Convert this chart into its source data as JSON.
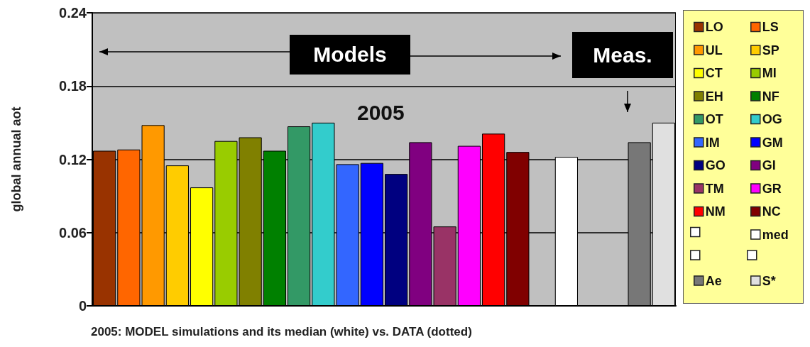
{
  "chart_data": {
    "type": "bar",
    "xlabel": "2005: MODEL simulations and its median (white) vs. DATA (dotted)",
    "ylabel": "global annual aot",
    "annotations": [
      "Models",
      "Meas.",
      "2005"
    ],
    "categories": [
      null,
      null,
      null,
      null,
      null,
      null,
      null,
      null,
      null,
      null,
      null,
      null,
      null,
      null,
      null,
      null,
      null,
      null,
      null,
      null,
      null,
      null,
      null,
      null
    ],
    "series": [
      {
        "name": "LO",
        "color": "#993300",
        "values": [
          0.127,
          null,
          null,
          null,
          null,
          null,
          null,
          null,
          null,
          null,
          null,
          null,
          null,
          null,
          null,
          null,
          null,
          null,
          null,
          null,
          null,
          null,
          null,
          null
        ]
      },
      {
        "name": "LS",
        "color": "#ff6600",
        "values": [
          null,
          0.128,
          null,
          null,
          null,
          null,
          null,
          null,
          null,
          null,
          null,
          null,
          null,
          null,
          null,
          null,
          null,
          null,
          null,
          null,
          null,
          null,
          null,
          null
        ]
      },
      {
        "name": "UL",
        "color": "#ff9900",
        "values": [
          null,
          null,
          0.148,
          null,
          null,
          null,
          null,
          null,
          null,
          null,
          null,
          null,
          null,
          null,
          null,
          null,
          null,
          null,
          null,
          null,
          null,
          null,
          null,
          null
        ]
      },
      {
        "name": "SP",
        "color": "#ffcc00",
        "values": [
          null,
          null,
          null,
          0.115,
          null,
          null,
          null,
          null,
          null,
          null,
          null,
          null,
          null,
          null,
          null,
          null,
          null,
          null,
          null,
          null,
          null,
          null,
          null,
          null
        ]
      },
      {
        "name": "CT",
        "color": "#ffff00",
        "values": [
          null,
          null,
          null,
          null,
          0.097,
          null,
          null,
          null,
          null,
          null,
          null,
          null,
          null,
          null,
          null,
          null,
          null,
          null,
          null,
          null,
          null,
          null,
          null,
          null
        ]
      },
      {
        "name": "MI",
        "color": "#99cc00",
        "values": [
          null,
          null,
          null,
          null,
          null,
          0.135,
          null,
          null,
          null,
          null,
          null,
          null,
          null,
          null,
          null,
          null,
          null,
          null,
          null,
          null,
          null,
          null,
          null,
          null
        ]
      },
      {
        "name": "EH",
        "color": "#808000",
        "values": [
          null,
          null,
          null,
          null,
          null,
          null,
          0.138,
          null,
          null,
          null,
          null,
          null,
          null,
          null,
          null,
          null,
          null,
          null,
          null,
          null,
          null,
          null,
          null,
          null
        ]
      },
      {
        "name": "NF",
        "color": "#008000",
        "values": [
          null,
          null,
          null,
          null,
          null,
          null,
          null,
          0.127,
          null,
          null,
          null,
          null,
          null,
          null,
          null,
          null,
          null,
          null,
          null,
          null,
          null,
          null,
          null,
          null
        ]
      },
      {
        "name": "OT",
        "color": "#339966",
        "values": [
          null,
          null,
          null,
          null,
          null,
          null,
          null,
          null,
          0.147,
          null,
          null,
          null,
          null,
          null,
          null,
          null,
          null,
          null,
          null,
          null,
          null,
          null,
          null,
          null
        ]
      },
      {
        "name": "OG",
        "color": "#33cccc",
        "values": [
          null,
          null,
          null,
          null,
          null,
          null,
          null,
          null,
          null,
          0.15,
          null,
          null,
          null,
          null,
          null,
          null,
          null,
          null,
          null,
          null,
          null,
          null,
          null,
          null
        ]
      },
      {
        "name": "IM",
        "color": "#3366ff",
        "values": [
          null,
          null,
          null,
          null,
          null,
          null,
          null,
          null,
          null,
          null,
          0.116,
          null,
          null,
          null,
          null,
          null,
          null,
          null,
          null,
          null,
          null,
          null,
          null,
          null
        ]
      },
      {
        "name": "GM",
        "color": "#0000ff",
        "values": [
          null,
          null,
          null,
          null,
          null,
          null,
          null,
          null,
          null,
          null,
          null,
          0.117,
          null,
          null,
          null,
          null,
          null,
          null,
          null,
          null,
          null,
          null,
          null,
          null
        ]
      },
      {
        "name": "GO",
        "color": "#000080",
        "values": [
          null,
          null,
          null,
          null,
          null,
          null,
          null,
          null,
          null,
          null,
          null,
          null,
          0.108,
          null,
          null,
          null,
          null,
          null,
          null,
          null,
          null,
          null,
          null,
          null
        ]
      },
      {
        "name": "GI",
        "color": "#800080",
        "values": [
          null,
          null,
          null,
          null,
          null,
          null,
          null,
          null,
          null,
          null,
          null,
          null,
          null,
          0.134,
          null,
          null,
          null,
          null,
          null,
          null,
          null,
          null,
          null,
          null
        ]
      },
      {
        "name": "TM",
        "color": "#993366",
        "values": [
          null,
          null,
          null,
          null,
          null,
          null,
          null,
          null,
          null,
          null,
          null,
          null,
          null,
          null,
          0.065,
          null,
          null,
          null,
          null,
          null,
          null,
          null,
          null,
          null
        ]
      },
      {
        "name": "GR",
        "color": "#ff00ff",
        "values": [
          null,
          null,
          null,
          null,
          null,
          null,
          null,
          null,
          null,
          null,
          null,
          null,
          null,
          null,
          null,
          0.131,
          null,
          null,
          null,
          null,
          null,
          null,
          null,
          null
        ]
      },
      {
        "name": "NM",
        "color": "#ff0000",
        "values": [
          null,
          null,
          null,
          null,
          null,
          null,
          null,
          null,
          null,
          null,
          null,
          null,
          null,
          null,
          null,
          null,
          0.141,
          null,
          null,
          null,
          null,
          null,
          null,
          null
        ]
      },
      {
        "name": "NC",
        "color": "#800000",
        "values": [
          null,
          null,
          null,
          null,
          null,
          null,
          null,
          null,
          null,
          null,
          null,
          null,
          null,
          null,
          null,
          null,
          null,
          0.126,
          null,
          null,
          null,
          null,
          null,
          null
        ]
      },
      {
        "name": "med",
        "color": "#ffffff",
        "values": [
          null,
          null,
          null,
          null,
          null,
          null,
          null,
          null,
          null,
          null,
          null,
          null,
          null,
          null,
          null,
          null,
          null,
          null,
          null,
          0.122,
          null,
          null,
          null,
          null
        ]
      },
      {
        "name": "Ae",
        "color": "#777777",
        "values": [
          null,
          null,
          null,
          null,
          null,
          null,
          null,
          null,
          null,
          null,
          null,
          null,
          null,
          null,
          null,
          null,
          null,
          null,
          null,
          null,
          null,
          null,
          0.134,
          null
        ]
      },
      {
        "name": "S*",
        "color": "#e0e0e0",
        "values": [
          null,
          null,
          null,
          null,
          null,
          null,
          null,
          null,
          null,
          null,
          null,
          null,
          null,
          null,
          null,
          null,
          null,
          null,
          null,
          null,
          null,
          null,
          null,
          0.15
        ]
      }
    ],
    "ylim": [
      0,
      0.24
    ],
    "yticks": [
      0,
      0.06,
      0.12,
      0.18,
      0.24
    ],
    "grid": "y",
    "legend": "right",
    "tick_labels": "y"
  }
}
